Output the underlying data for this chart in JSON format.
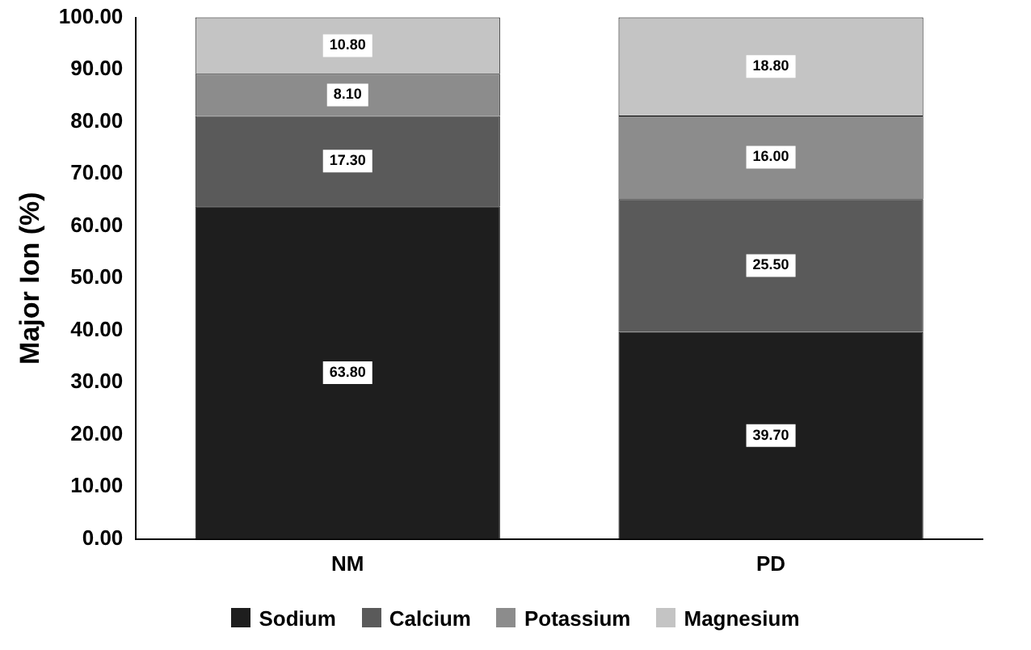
{
  "chart_data": {
    "type": "bar",
    "stacked": true,
    "ylabel": "Major Ion (%)",
    "categories": [
      "NM",
      "PD"
    ],
    "series": [
      {
        "name": "Sodium",
        "color": "#1e1e1e",
        "values": [
          63.8,
          39.7
        ],
        "value_labels": [
          "63.80",
          "39.70"
        ]
      },
      {
        "name": "Calcium",
        "color": "#5a5a5a",
        "values": [
          17.3,
          25.5
        ],
        "value_labels": [
          "17.30",
          "25.50"
        ]
      },
      {
        "name": "Potassium",
        "color": "#8c8c8c",
        "values": [
          8.1,
          16.0
        ],
        "value_labels": [
          "8.10",
          "16.00"
        ]
      },
      {
        "name": "Magnesium",
        "color": "#c4c4c4",
        "values": [
          10.8,
          18.8
        ],
        "value_labels": [
          "10.80",
          "18.80"
        ]
      }
    ],
    "ylim": [
      0,
      100
    ],
    "yticks": [
      {
        "value": 0,
        "label": "0.00"
      },
      {
        "value": 10,
        "label": "10.00"
      },
      {
        "value": 20,
        "label": "20.00"
      },
      {
        "value": 30,
        "label": "30.00"
      },
      {
        "value": 40,
        "label": "40.00"
      },
      {
        "value": 50,
        "label": "50.00"
      },
      {
        "value": 60,
        "label": "60.00"
      },
      {
        "value": 70,
        "label": "70.00"
      },
      {
        "value": 80,
        "label": "80.00"
      },
      {
        "value": 90,
        "label": "90.00"
      },
      {
        "value": 100,
        "label": "100.00"
      }
    ],
    "grid": false,
    "legend": "bottom"
  }
}
